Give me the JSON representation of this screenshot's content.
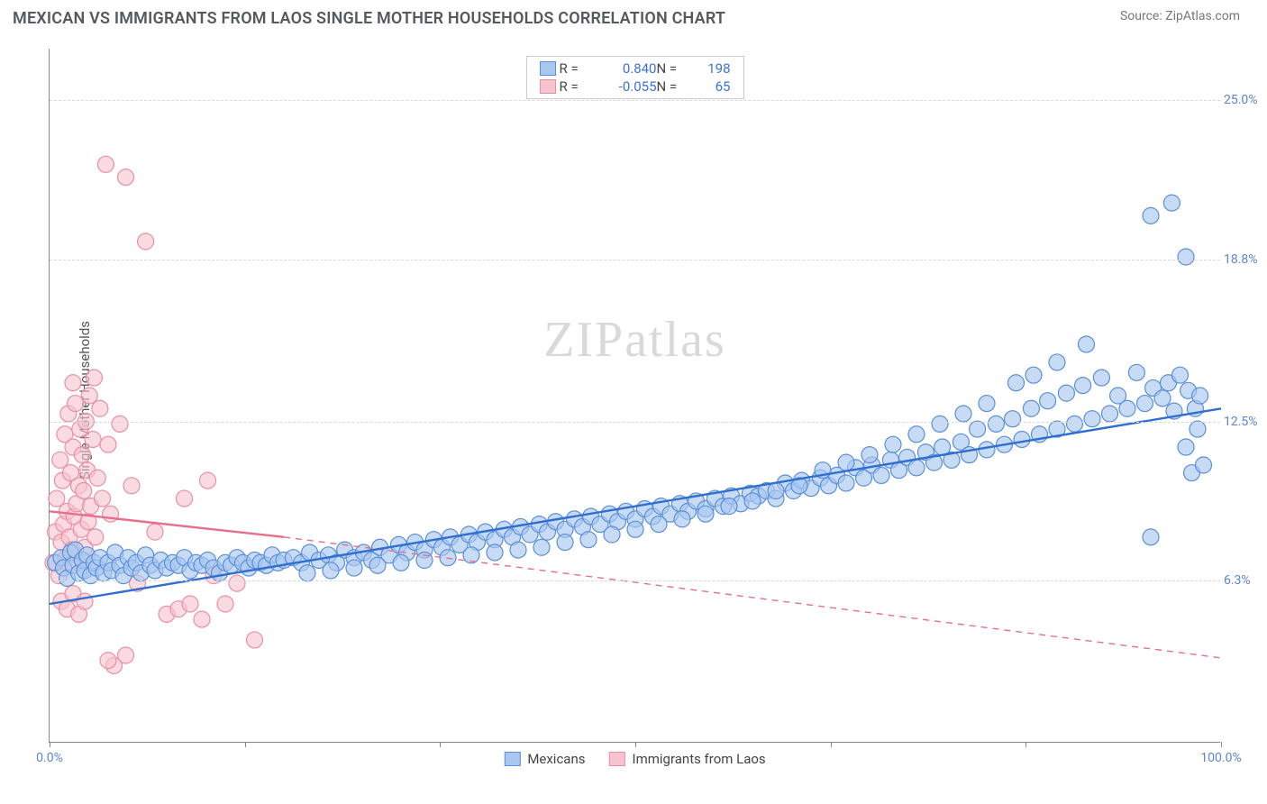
{
  "title": "MEXICAN VS IMMIGRANTS FROM LAOS SINGLE MOTHER HOUSEHOLDS CORRELATION CHART",
  "source": "Source: ZipAtlas.com",
  "ylabel": "Single Mother Households",
  "watermark": "ZIPatlas",
  "chart": {
    "type": "scatter",
    "background_color": "#ffffff",
    "grid_color": "#d9d9d9",
    "axis_color": "#888888",
    "tick_label_color": "#5b84d6",
    "xlim": [
      0,
      100
    ],
    "ylim": [
      0,
      27
    ],
    "x_ticks": [
      0,
      16.67,
      33.33,
      50,
      66.67,
      83.33,
      100
    ],
    "x_tick_labels": {
      "0": "0.0%",
      "100": "100.0%"
    },
    "y_gridlines": [
      6.3,
      12.5,
      18.8,
      25.0
    ],
    "y_tick_labels": [
      "6.3%",
      "12.5%",
      "18.8%",
      "25.0%"
    ],
    "marker_radius": 9,
    "marker_stroke_width": 1.2,
    "line_width": 2.4
  },
  "series": {
    "mexicans": {
      "label": "Mexicans",
      "fill": "#a9c8ef",
      "stroke": "#5b8fd8",
      "line_color": "#2f6fd0",
      "fill_opacity": 0.65,
      "R": "0.840",
      "N": "198",
      "trend": {
        "x1": 0,
        "y1": 5.4,
        "x2": 100,
        "y2": 13.0
      },
      "points": [
        [
          0.5,
          7.0
        ],
        [
          1.0,
          7.2
        ],
        [
          1.2,
          6.8
        ],
        [
          1.5,
          6.4
        ],
        [
          1.8,
          7.4
        ],
        [
          2.0,
          6.9
        ],
        [
          2.2,
          7.5
        ],
        [
          2.5,
          6.6
        ],
        [
          2.8,
          7.1
        ],
        [
          3.0,
          6.7
        ],
        [
          3.2,
          7.3
        ],
        [
          3.5,
          6.5
        ],
        [
          3.8,
          7.0
        ],
        [
          4.0,
          6.8
        ],
        [
          4.3,
          7.2
        ],
        [
          4.6,
          6.6
        ],
        [
          5.0,
          7.0
        ],
        [
          5.3,
          6.7
        ],
        [
          5.6,
          7.4
        ],
        [
          6.0,
          6.9
        ],
        [
          6.3,
          6.5
        ],
        [
          6.7,
          7.2
        ],
        [
          7.0,
          6.8
        ],
        [
          7.4,
          7.0
        ],
        [
          7.8,
          6.6
        ],
        [
          8.2,
          7.3
        ],
        [
          8.6,
          6.9
        ],
        [
          9.0,
          6.7
        ],
        [
          9.5,
          7.1
        ],
        [
          10.0,
          6.8
        ],
        [
          10.5,
          7.0
        ],
        [
          11.0,
          6.9
        ],
        [
          11.5,
          7.2
        ],
        [
          12.0,
          6.7
        ],
        [
          12.5,
          7.0
        ],
        [
          13.0,
          6.9
        ],
        [
          13.5,
          7.1
        ],
        [
          14.0,
          6.8
        ],
        [
          14.5,
          6.6
        ],
        [
          15.0,
          7.0
        ],
        [
          15.5,
          6.9
        ],
        [
          16.0,
          7.2
        ],
        [
          16.5,
          7.0
        ],
        [
          17.0,
          6.8
        ],
        [
          17.5,
          7.1
        ],
        [
          18.0,
          7.0
        ],
        [
          18.5,
          6.9
        ],
        [
          19.0,
          7.3
        ],
        [
          19.5,
          7.0
        ],
        [
          20.0,
          7.1
        ],
        [
          20.8,
          7.2
        ],
        [
          21.5,
          7.0
        ],
        [
          22.2,
          7.4
        ],
        [
          23.0,
          7.1
        ],
        [
          23.8,
          7.3
        ],
        [
          24.5,
          7.0
        ],
        [
          25.2,
          7.5
        ],
        [
          26.0,
          7.2
        ],
        [
          26.8,
          7.4
        ],
        [
          27.5,
          7.1
        ],
        [
          28.2,
          7.6
        ],
        [
          29.0,
          7.3
        ],
        [
          29.8,
          7.7
        ],
        [
          30.5,
          7.4
        ],
        [
          31.2,
          7.8
        ],
        [
          32.0,
          7.5
        ],
        [
          32.8,
          7.9
        ],
        [
          33.5,
          7.6
        ],
        [
          34.2,
          8.0
        ],
        [
          35.0,
          7.7
        ],
        [
          35.8,
          8.1
        ],
        [
          36.5,
          7.8
        ],
        [
          37.2,
          8.2
        ],
        [
          38.0,
          7.9
        ],
        [
          38.8,
          8.3
        ],
        [
          39.5,
          8.0
        ],
        [
          40.2,
          8.4
        ],
        [
          41.0,
          8.1
        ],
        [
          41.8,
          8.5
        ],
        [
          42.5,
          8.2
        ],
        [
          43.2,
          8.6
        ],
        [
          44.0,
          8.3
        ],
        [
          44.8,
          8.7
        ],
        [
          45.5,
          8.4
        ],
        [
          46.2,
          8.8
        ],
        [
          47.0,
          8.5
        ],
        [
          47.8,
          8.9
        ],
        [
          48.5,
          8.6
        ],
        [
          49.2,
          9.0
        ],
        [
          50.0,
          8.7
        ],
        [
          50.8,
          9.1
        ],
        [
          51.5,
          8.8
        ],
        [
          52.2,
          9.2
        ],
        [
          53.0,
          8.9
        ],
        [
          53.8,
          9.3
        ],
        [
          54.5,
          9.0
        ],
        [
          55.2,
          9.4
        ],
        [
          56.0,
          9.1
        ],
        [
          56.8,
          9.5
        ],
        [
          57.5,
          9.2
        ],
        [
          58.2,
          9.6
        ],
        [
          59.0,
          9.3
        ],
        [
          59.8,
          9.7
        ],
        [
          60.5,
          9.6
        ],
        [
          61.2,
          9.8
        ],
        [
          62.0,
          9.5
        ],
        [
          62.8,
          10.1
        ],
        [
          63.5,
          9.8
        ],
        [
          64.2,
          10.2
        ],
        [
          65.0,
          9.9
        ],
        [
          65.8,
          10.3
        ],
        [
          66.5,
          10.0
        ],
        [
          67.2,
          10.4
        ],
        [
          68.0,
          10.1
        ],
        [
          68.8,
          10.7
        ],
        [
          69.5,
          10.3
        ],
        [
          70.2,
          10.8
        ],
        [
          71.0,
          10.4
        ],
        [
          71.8,
          11.0
        ],
        [
          72.5,
          10.6
        ],
        [
          73.2,
          11.1
        ],
        [
          74.0,
          10.7
        ],
        [
          74.8,
          11.3
        ],
        [
          75.5,
          10.9
        ],
        [
          76.2,
          11.5
        ],
        [
          77.0,
          11.0
        ],
        [
          77.8,
          11.7
        ],
        [
          78.5,
          11.2
        ],
        [
          79.2,
          12.2
        ],
        [
          80.0,
          11.4
        ],
        [
          80.8,
          12.4
        ],
        [
          81.5,
          11.6
        ],
        [
          82.2,
          12.6
        ],
        [
          83.0,
          11.8
        ],
        [
          83.8,
          13.0
        ],
        [
          84.5,
          12.0
        ],
        [
          85.2,
          13.3
        ],
        [
          86.0,
          12.2
        ],
        [
          86.8,
          13.6
        ],
        [
          87.5,
          12.4
        ],
        [
          88.2,
          13.9
        ],
        [
          89.0,
          12.6
        ],
        [
          89.8,
          14.2
        ],
        [
          90.5,
          12.8
        ],
        [
          91.2,
          13.5
        ],
        [
          92.0,
          13.0
        ],
        [
          92.8,
          14.4
        ],
        [
          93.5,
          13.2
        ],
        [
          94.2,
          13.8
        ],
        [
          95.0,
          13.4
        ],
        [
          95.5,
          14.0
        ],
        [
          96.0,
          12.9
        ],
        [
          96.5,
          14.3
        ],
        [
          97.0,
          11.5
        ],
        [
          97.2,
          13.7
        ],
        [
          97.5,
          10.5
        ],
        [
          97.8,
          13.0
        ],
        [
          98.0,
          12.2
        ],
        [
          98.2,
          13.5
        ],
        [
          98.5,
          10.8
        ],
        [
          94.0,
          20.5
        ],
        [
          95.8,
          21.0
        ],
        [
          97.0,
          18.9
        ],
        [
          94.0,
          8.0
        ],
        [
          88.5,
          15.5
        ],
        [
          86.0,
          14.8
        ],
        [
          84.0,
          14.3
        ],
        [
          82.5,
          14.0
        ],
        [
          80.0,
          13.2
        ],
        [
          78.0,
          12.8
        ],
        [
          76.0,
          12.4
        ],
        [
          74.0,
          12.0
        ],
        [
          72.0,
          11.6
        ],
        [
          70.0,
          11.2
        ],
        [
          68.0,
          10.9
        ],
        [
          66.0,
          10.6
        ],
        [
          64.0,
          10.0
        ],
        [
          62.0,
          9.8
        ],
        [
          60.0,
          9.4
        ],
        [
          58.0,
          9.2
        ],
        [
          56.0,
          8.9
        ],
        [
          54.0,
          8.7
        ],
        [
          52.0,
          8.5
        ],
        [
          50.0,
          8.3
        ],
        [
          48.0,
          8.1
        ],
        [
          46.0,
          7.9
        ],
        [
          44.0,
          7.8
        ],
        [
          42.0,
          7.6
        ],
        [
          40.0,
          7.5
        ],
        [
          38.0,
          7.4
        ],
        [
          36.0,
          7.3
        ],
        [
          34.0,
          7.2
        ],
        [
          32.0,
          7.1
        ],
        [
          30.0,
          7.0
        ],
        [
          28.0,
          6.9
        ],
        [
          26.0,
          6.8
        ],
        [
          24.0,
          6.7
        ],
        [
          22.0,
          6.6
        ]
      ]
    },
    "laos": {
      "label": "Immigrants from Laos",
      "fill": "#f6c3ce",
      "stroke": "#ea8fa4",
      "line_color": "#e66f8b",
      "fill_opacity": 0.6,
      "R": "-0.055",
      "N": "65",
      "trend_solid": {
        "x1": 0,
        "y1": 9.0,
        "x2": 20,
        "y2": 8.0
      },
      "trend_dashed": {
        "x1": 20,
        "y1": 8.0,
        "x2": 100,
        "y2": 3.3
      },
      "points": [
        [
          0.3,
          7.0
        ],
        [
          0.5,
          8.2
        ],
        [
          0.6,
          9.5
        ],
        [
          0.8,
          6.5
        ],
        [
          0.9,
          11.0
        ],
        [
          1.0,
          7.8
        ],
        [
          1.1,
          10.2
        ],
        [
          1.2,
          8.5
        ],
        [
          1.3,
          12.0
        ],
        [
          1.4,
          7.2
        ],
        [
          1.5,
          9.0
        ],
        [
          1.6,
          12.8
        ],
        [
          1.7,
          8.0
        ],
        [
          1.8,
          10.5
        ],
        [
          1.9,
          7.5
        ],
        [
          2.0,
          11.5
        ],
        [
          2.1,
          8.8
        ],
        [
          2.2,
          13.2
        ],
        [
          2.3,
          9.3
        ],
        [
          2.4,
          7.0
        ],
        [
          2.5,
          10.0
        ],
        [
          2.6,
          12.2
        ],
        [
          2.7,
          8.3
        ],
        [
          2.8,
          11.2
        ],
        [
          2.9,
          9.8
        ],
        [
          3.0,
          7.6
        ],
        [
          3.1,
          12.5
        ],
        [
          3.2,
          10.6
        ],
        [
          3.3,
          8.6
        ],
        [
          3.4,
          13.5
        ],
        [
          3.5,
          9.2
        ],
        [
          3.7,
          11.8
        ],
        [
          3.9,
          8.0
        ],
        [
          4.1,
          10.3
        ],
        [
          4.3,
          13.0
        ],
        [
          4.5,
          9.5
        ],
        [
          4.8,
          22.5
        ],
        [
          5.0,
          11.6
        ],
        [
          5.2,
          8.9
        ],
        [
          5.5,
          3.0
        ],
        [
          6.0,
          12.4
        ],
        [
          6.5,
          22.0
        ],
        [
          7.0,
          10.0
        ],
        [
          7.5,
          6.2
        ],
        [
          8.2,
          19.5
        ],
        [
          1.0,
          5.5
        ],
        [
          1.5,
          5.2
        ],
        [
          2.0,
          5.8
        ],
        [
          2.5,
          5.0
        ],
        [
          3.0,
          5.5
        ],
        [
          5.0,
          3.2
        ],
        [
          6.5,
          3.4
        ],
        [
          9.0,
          8.2
        ],
        [
          10.0,
          5.0
        ],
        [
          11.0,
          5.2
        ],
        [
          11.5,
          9.5
        ],
        [
          12.0,
          5.4
        ],
        [
          13.0,
          4.8
        ],
        [
          13.5,
          10.2
        ],
        [
          14.0,
          6.5
        ],
        [
          15.0,
          5.4
        ],
        [
          16.0,
          6.2
        ],
        [
          17.5,
          4.0
        ],
        [
          2.0,
          14.0
        ],
        [
          3.8,
          14.2
        ]
      ]
    }
  },
  "legend_top": {
    "rows": [
      {
        "swatch_fill": "#a9c8ef",
        "swatch_stroke": "#5b8fd8",
        "R_label": "R =",
        "R_val": "0.840",
        "N_label": "N =",
        "N_val": "198"
      },
      {
        "swatch_fill": "#f6c3ce",
        "swatch_stroke": "#ea8fa4",
        "R_label": "R =",
        "R_val": "-0.055",
        "N_label": "N =",
        "N_val": "65"
      }
    ]
  },
  "legend_bottom": [
    {
      "swatch_fill": "#a9c8ef",
      "swatch_stroke": "#5b8fd8",
      "label": "Mexicans"
    },
    {
      "swatch_fill": "#f6c3ce",
      "swatch_stroke": "#ea8fa4",
      "label": "Immigrants from Laos"
    }
  ]
}
